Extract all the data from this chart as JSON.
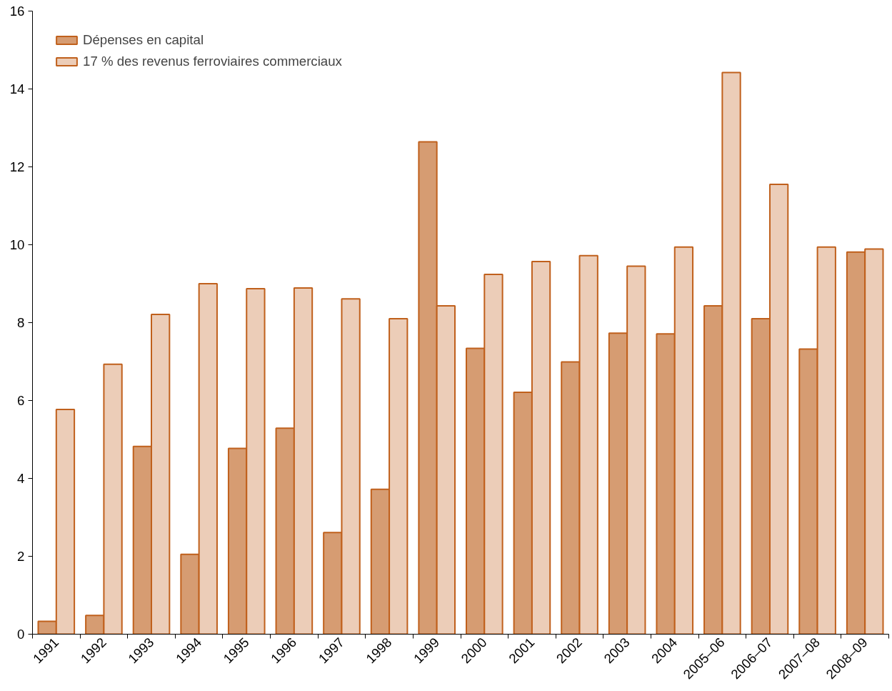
{
  "chart_data": {
    "type": "bar",
    "categories": [
      "1991",
      "1992",
      "1993",
      "1994",
      "1995",
      "1996",
      "1997",
      "1998",
      "1999",
      "2000",
      "2001",
      "2002",
      "2003",
      "2004",
      "2005–06",
      "2006–07",
      "2007–08",
      "2008–09"
    ],
    "series": [
      {
        "name": "Dépenses en capital",
        "color": "#d69c72",
        "values": [
          0.33,
          0.48,
          4.82,
          2.05,
          4.77,
          5.29,
          2.61,
          3.72,
          12.64,
          7.34,
          6.21,
          6.99,
          7.73,
          7.71,
          8.43,
          8.1,
          7.32,
          9.81
        ]
      },
      {
        "name": "17 % des revenus ferroviaires commerciaux",
        "color": "#eccdb8",
        "values": [
          5.77,
          6.93,
          8.21,
          9.0,
          8.87,
          8.89,
          8.61,
          8.1,
          8.43,
          9.24,
          9.57,
          9.72,
          9.45,
          9.94,
          14.42,
          11.55,
          9.94,
          9.89
        ]
      }
    ],
    "ylim": [
      0,
      16
    ],
    "yticks": [
      0,
      2,
      4,
      6,
      8,
      10,
      12,
      14,
      16
    ],
    "grid": false,
    "legend": "top left"
  }
}
